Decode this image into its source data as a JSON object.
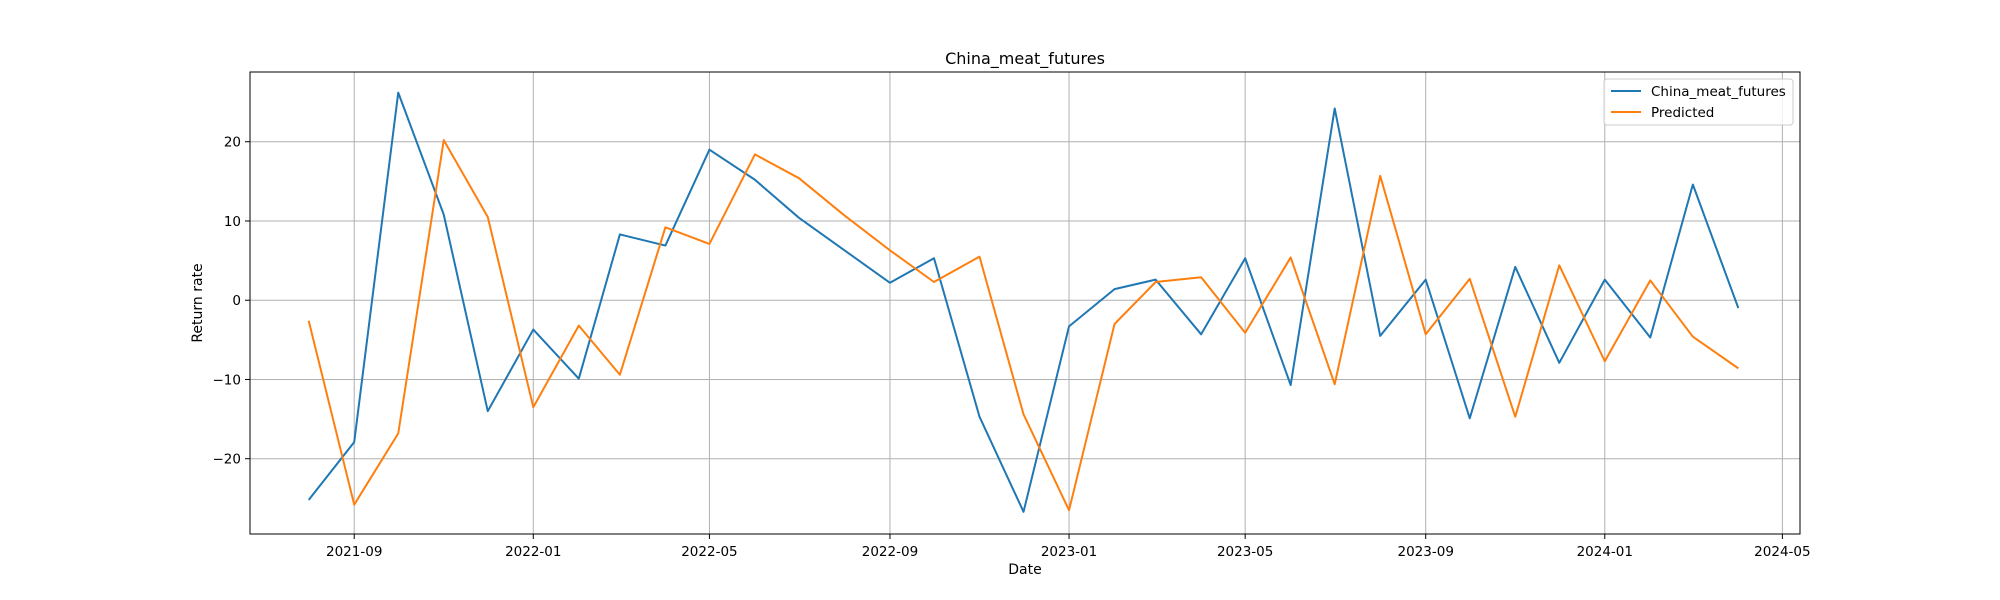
{
  "chart_data": {
    "type": "line",
    "title": "China_meat_futures",
    "xlabel": "Date",
    "ylabel": "Return rate",
    "x_axis": "date",
    "xlim": [
      "2021-06-22",
      "2024-05-13"
    ],
    "ylim": [
      -29.5,
      28.8
    ],
    "grid": true,
    "legend_position": "top-right",
    "x_ticks": [
      "2021-09",
      "2022-01",
      "2022-05",
      "2022-09",
      "2023-01",
      "2023-05",
      "2023-09",
      "2024-01",
      "2024-05"
    ],
    "y_ticks": [
      -20,
      -10,
      0,
      10,
      20
    ],
    "x": [
      "2021-08-01",
      "2021-09-01",
      "2021-10-01",
      "2021-11-01",
      "2021-12-01",
      "2022-01-01",
      "2022-02-01",
      "2022-03-01",
      "2022-04-01",
      "2022-05-01",
      "2022-06-01",
      "2022-07-01",
      "2022-08-01",
      "2022-09-01",
      "2022-10-01",
      "2022-11-01",
      "2022-12-01",
      "2023-01-01",
      "2023-02-01",
      "2023-03-01",
      "2023-04-01",
      "2023-05-01",
      "2023-06-01",
      "2023-07-01",
      "2023-08-01",
      "2023-09-01",
      "2023-10-01",
      "2023-11-01",
      "2023-12-01",
      "2024-01-01",
      "2024-02-01",
      "2024-03-01",
      "2024-04-01"
    ],
    "series": [
      {
        "name": "China_meat_futures",
        "color": "#1f77b4",
        "values": [
          -25.2,
          -17.9,
          26.2,
          10.8,
          -14.0,
          -3.7,
          -9.9,
          8.3,
          6.9,
          19.0,
          15.2,
          10.4,
          6.3,
          2.2,
          5.3,
          -14.7,
          -26.7,
          -3.3,
          1.4,
          2.6,
          -4.3,
          5.3,
          -10.7,
          24.2,
          -4.5,
          2.6,
          -14.9,
          4.2,
          -7.9,
          2.6,
          -4.7,
          14.6,
          -1.0
        ]
      },
      {
        "name": "Predicted",
        "color": "#ff7f0e",
        "values": [
          -2.6,
          -25.8,
          -16.8,
          20.2,
          10.5,
          -13.5,
          -3.2,
          -9.4,
          9.2,
          7.1,
          18.4,
          15.4,
          10.7,
          6.3,
          2.3,
          5.5,
          -14.4,
          -26.5,
          -3.0,
          2.3,
          2.9,
          -4.1,
          5.4,
          -10.6,
          15.7,
          -4.3,
          2.7,
          -14.7,
          4.4,
          -7.7,
          2.5,
          -4.6,
          -8.6
        ]
      }
    ]
  }
}
